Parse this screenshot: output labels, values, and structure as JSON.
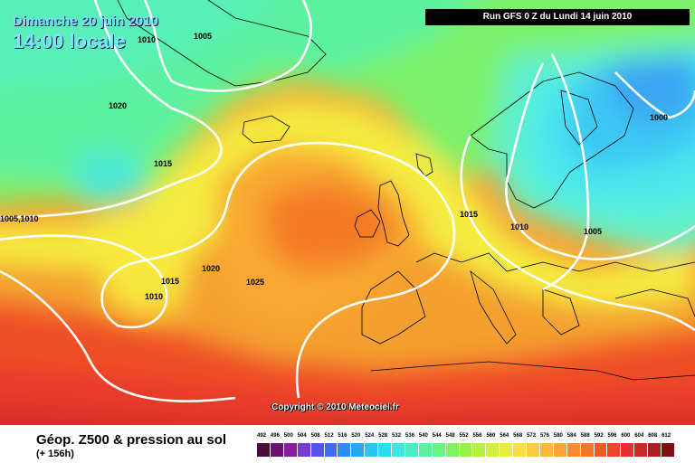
{
  "header": {
    "date": "Dimanche 20 juin 2010",
    "time": "14:00 locale",
    "run": "Run GFS 0 Z du Lundi 14 juin 2010"
  },
  "copyright": "Copyright © 2010 Meteociel.fr",
  "isobar_labels": [
    "1010",
    "1005",
    "1020",
    "1015",
    "1005,1010",
    "1015",
    "1020",
    "1025",
    "1010",
    "1015",
    "1010",
    "1005",
    "1000"
  ],
  "legend": {
    "title": "Géop. Z500 & pression au sol",
    "subtitle": "(+ 156h)",
    "scale_values": [
      "492",
      "496",
      "500",
      "504",
      "508",
      "512",
      "516",
      "520",
      "524",
      "528",
      "532",
      "536",
      "540",
      "544",
      "548",
      "552",
      "556",
      "560",
      "564",
      "568",
      "572",
      "576",
      "580",
      "584",
      "588",
      "592",
      "596",
      "600",
      "604",
      "608",
      "612"
    ],
    "scale_colors": [
      "#4b0a3c",
      "#6a1270",
      "#8a1aa0",
      "#7a3ad0",
      "#5555ee",
      "#3c6cf5",
      "#2d8cf5",
      "#26a8f0",
      "#28c6f2",
      "#2cdcf0",
      "#3ce8e0",
      "#48efc4",
      "#5af2a2",
      "#68f480",
      "#80f460",
      "#98f248",
      "#b6f23c",
      "#d0f23a",
      "#e8ee3c",
      "#f8e040",
      "#fbcc3c",
      "#fcb838",
      "#fca434",
      "#fb8c2e",
      "#f8742a",
      "#f45a28",
      "#ee4428",
      "#e43030",
      "#cc2828",
      "#aa1f22",
      "#800f14"
    ]
  }
}
